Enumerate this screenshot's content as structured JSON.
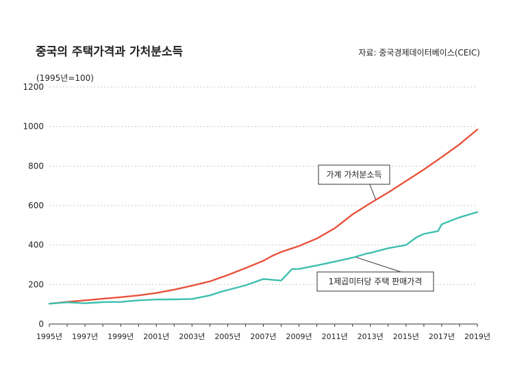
{
  "chart_data": {
    "type": "line",
    "title": "중국의 주택가격과 가처분소득",
    "source": "자료: 중국경제데이터베이스(CEIC)",
    "ylabel": "(1995년=100)",
    "ylim": [
      0,
      1200
    ],
    "yticks": [
      0,
      200,
      400,
      600,
      800,
      1000,
      1200
    ],
    "xlim": [
      1995,
      2019
    ],
    "xtick_labels": [
      {
        "x": 1995,
        "label": "1995년"
      },
      {
        "x": 1997,
        "label": "1997년"
      },
      {
        "x": 1999,
        "label": "1999년"
      },
      {
        "x": 2001,
        "label": "2001년"
      },
      {
        "x": 2003,
        "label": "2003년"
      },
      {
        "x": 2005,
        "label": "2005년"
      },
      {
        "x": 2007,
        "label": "2007년"
      },
      {
        "x": 2009,
        "label": "2009년"
      },
      {
        "x": 2011,
        "label": "2011년"
      },
      {
        "x": 2013,
        "label": "2013년"
      },
      {
        "x": 2015,
        "label": "2015년"
      },
      {
        "x": 2017,
        "label": "2017년"
      },
      {
        "x": 2019,
        "label": "2019년"
      }
    ],
    "grid": true,
    "series": [
      {
        "name": "가계 가처분소득",
        "color": "#e8523a",
        "points": [
          [
            1995,
            103
          ],
          [
            1996,
            112
          ],
          [
            1997,
            120
          ],
          [
            1998,
            128
          ],
          [
            1999,
            136
          ],
          [
            2000,
            145
          ],
          [
            2001,
            157
          ],
          [
            2002,
            174
          ],
          [
            2003,
            194
          ],
          [
            2004,
            216
          ],
          [
            2005,
            248
          ],
          [
            2006,
            283
          ],
          [
            2007,
            320
          ],
          [
            2007.5,
            345
          ],
          [
            2008,
            365
          ],
          [
            2009,
            395
          ],
          [
            2010,
            433
          ],
          [
            2011,
            485
          ],
          [
            2012,
            555
          ],
          [
            2013,
            612
          ],
          [
            2014,
            666
          ],
          [
            2015,
            724
          ],
          [
            2016,
            782
          ],
          [
            2017,
            845
          ],
          [
            2018,
            910
          ],
          [
            2019,
            985
          ]
        ]
      },
      {
        "name": "1제곱미터당 주택 판매가격",
        "color": "#3dbfae",
        "points": [
          [
            1995,
            103
          ],
          [
            1996,
            110
          ],
          [
            1997,
            105
          ],
          [
            1998,
            111
          ],
          [
            1999,
            112
          ],
          [
            2000,
            120
          ],
          [
            2001,
            124
          ],
          [
            2002,
            125
          ],
          [
            2003,
            127
          ],
          [
            2004,
            145
          ],
          [
            2004.7,
            165
          ],
          [
            2005,
            172
          ],
          [
            2006,
            196
          ],
          [
            2007,
            228
          ],
          [
            2008,
            220
          ],
          [
            2008.6,
            278
          ],
          [
            2009,
            279
          ],
          [
            2010,
            297
          ],
          [
            2011,
            316
          ],
          [
            2012,
            336
          ],
          [
            2012.8,
            357
          ],
          [
            2013,
            360
          ],
          [
            2014,
            384
          ],
          [
            2015,
            400
          ],
          [
            2015.6,
            440
          ],
          [
            2016,
            456
          ],
          [
            2016.8,
            471
          ],
          [
            2017,
            505
          ],
          [
            2018,
            540
          ],
          [
            2019,
            567
          ]
        ]
      }
    ]
  }
}
